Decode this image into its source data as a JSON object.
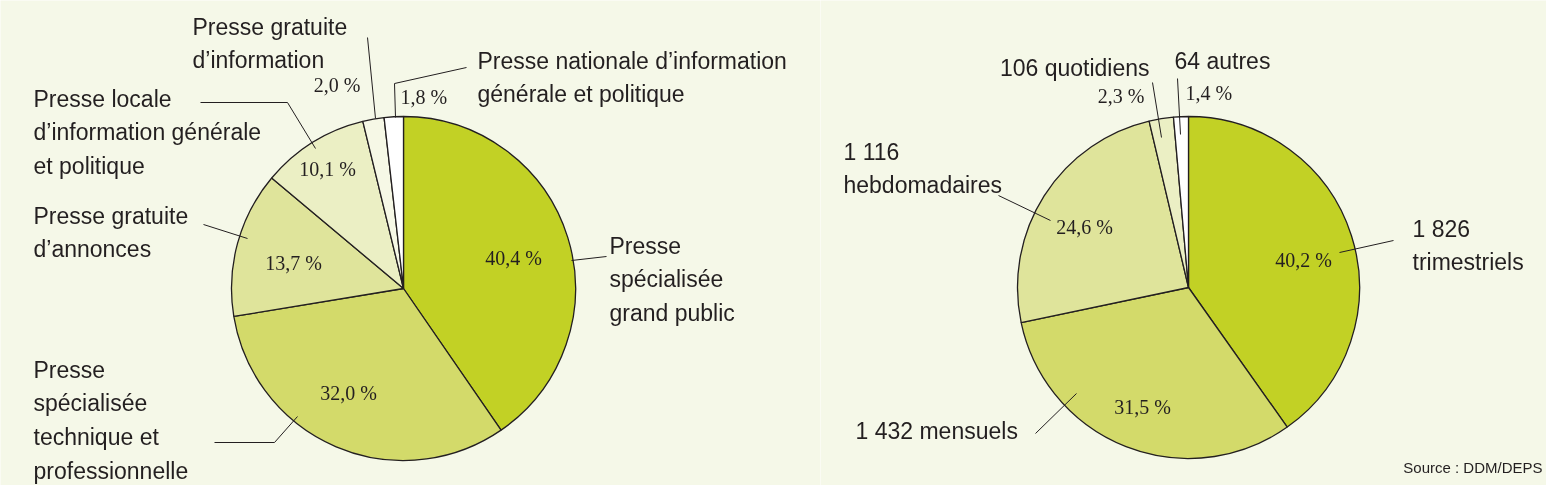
{
  "chart_data": [
    {
      "type": "pie",
      "categories": [
        "Presse spécialisée grand public",
        "Presse spécialisée technique et professionnelle",
        "Presse gratuite d’annonces",
        "Presse locale d’information générale et politique",
        "Presse gratuite d’information",
        "Presse nationale d’information générale et politique"
      ],
      "values": [
        40.4,
        32.0,
        13.7,
        10.1,
        2.0,
        1.8
      ],
      "colors": [
        "#c2d125",
        "#d3da6a",
        "#dfe49b",
        "#ebefc4",
        "#f6f8e6",
        "#ffffff"
      ],
      "value_labels": [
        "40,4 %",
        "32,0 %",
        "13,7 %",
        "10,1 %",
        "2,0 %",
        "1,8 %"
      ]
    },
    {
      "type": "pie",
      "categories": [
        "1 826 trimestriels",
        "1 432 mensuels",
        "1 116 hebdomadaires",
        "106 quotidiens",
        "64 autres"
      ],
      "values": [
        40.2,
        31.5,
        24.6,
        2.3,
        1.4
      ],
      "colors": [
        "#c2d125",
        "#d3da6a",
        "#dfe49b",
        "#ebefc4",
        "#ffffff"
      ],
      "value_labels": [
        "40,2 %",
        "31,5 %",
        "24,6 %",
        "2,3 %",
        "1,4 %"
      ],
      "annotations": [
        "Source : DDM/DEPS"
      ]
    }
  ]
}
